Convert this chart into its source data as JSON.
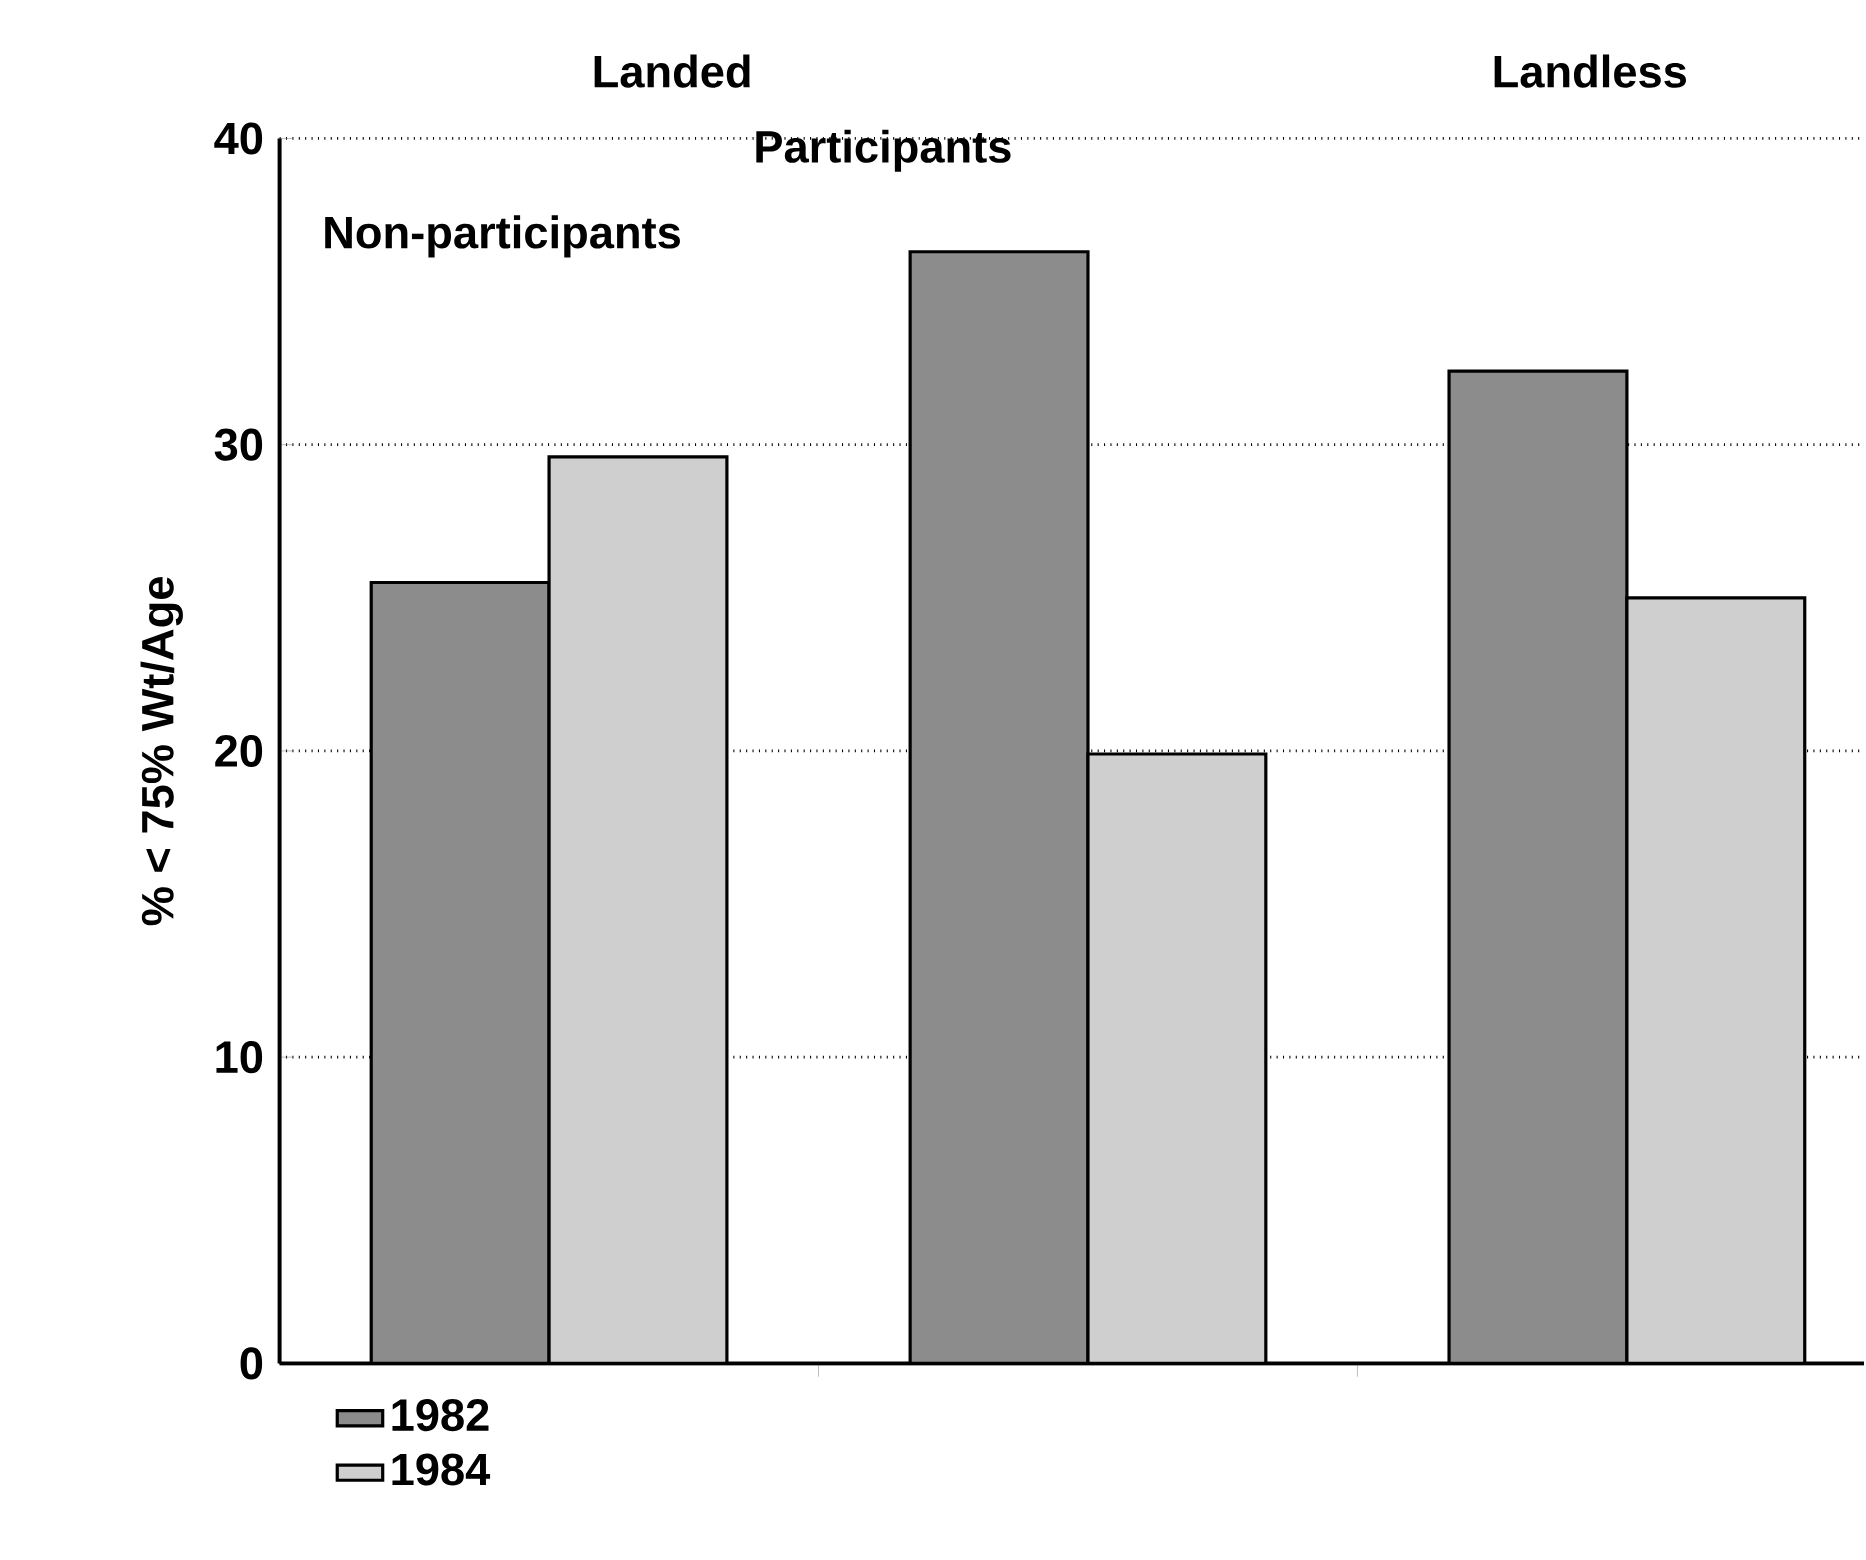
{
  "chart_data": {
    "type": "bar",
    "ylabel": "% < 75% Wt/Age",
    "categories": [
      "Non-participants",
      "Participants",
      "Landless"
    ],
    "series": [
      {
        "name": "1982",
        "color": "#8c8c8c",
        "values": [
          25.5,
          36.3,
          32.4
        ]
      },
      {
        "name": "1984",
        "color": "#cfcfcf",
        "values": [
          29.6,
          19.9,
          25.0
        ]
      }
    ],
    "annotations": [
      "Landed"
    ],
    "ylim": [
      0,
      40
    ],
    "yticks": [
      0,
      10,
      20,
      30,
      40
    ],
    "grid": "y",
    "legend": "bottom left"
  }
}
